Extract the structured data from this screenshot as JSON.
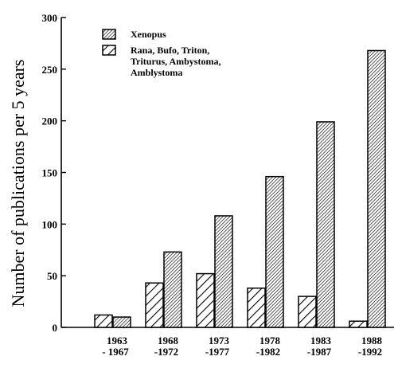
{
  "chart_data": {
    "type": "bar",
    "title": "",
    "xlabel": "",
    "ylabel": "Number of publications per 5 years",
    "ylim": [
      0,
      300
    ],
    "yticks": [
      0,
      50,
      100,
      150,
      200,
      250,
      300
    ],
    "grid": false,
    "legend_position": "top-left",
    "categories": [
      [
        "1963",
        "- 1967"
      ],
      [
        "1968",
        "-1972"
      ],
      [
        "1973",
        "-1977"
      ],
      [
        "1978",
        "-1982"
      ],
      [
        "1983",
        "-1987"
      ],
      [
        "1988",
        "-1992"
      ]
    ],
    "series": [
      {
        "name": "Rana, Bufo, Triton, Triturus, Ambystoma, Amblystoma",
        "legend_lines": [
          "Rana, Bufo, Triton,",
          "Triturus, Ambystoma,",
          "Amblystoma"
        ],
        "pattern": "sparse-diagonal",
        "values": [
          12,
          43,
          52,
          38,
          30,
          6
        ]
      },
      {
        "name": "Xenopus",
        "legend_lines": [
          "Xenopus"
        ],
        "pattern": "dense-diagonal",
        "values": [
          10,
          73,
          108,
          146,
          199,
          268
        ]
      }
    ]
  }
}
